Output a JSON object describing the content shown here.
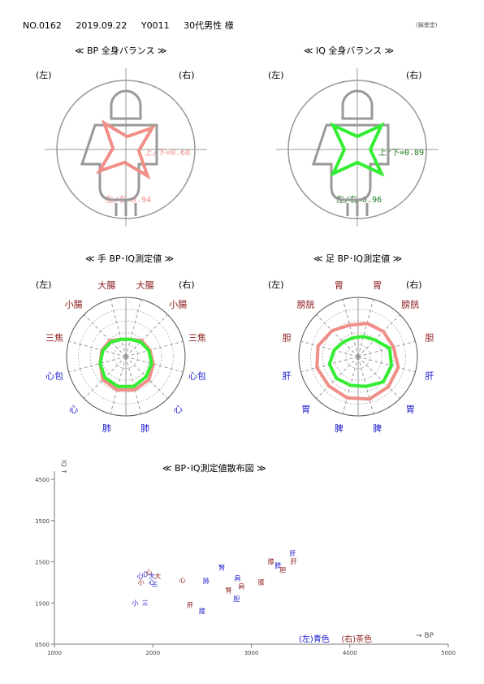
{
  "header": {
    "no": "NO.0162",
    "date": "2019.09.22",
    "id": "Y0011",
    "name": "30代男性 様"
  },
  "stamp": "(錦墨堂)",
  "colors": {
    "blue": "#1a1acc",
    "brown": "#8b1a1a",
    "pink": "#f08e88",
    "green": "#33ee33",
    "darkgreen": "#1a7a1a",
    "grid": "#999999"
  },
  "balance": [
    {
      "title": "≪ BP 全身バランス ≫",
      "left": "(左)",
      "right": "(右)",
      "ud": "上/下=0.68",
      "lr": "左/右=0.94",
      "color": "#f08e88",
      "textcolor": "#f08e88"
    },
    {
      "title": "≪ IQ 全身バランス ≫",
      "left": "(左)",
      "right": "(右)",
      "ud": "上/下=0.89",
      "lr": "左/右=0.96",
      "color": "#33ee33",
      "textcolor": "#1a7a1a"
    }
  ],
  "hand": {
    "title": "≪ 手 BP･IQ測定値 ≫",
    "left": "(左)",
    "right": "(右)",
    "labels": [
      "肺",
      "心",
      "心包",
      "三焦",
      "小腸",
      "大腸",
      "大腸",
      "小腸",
      "三焦",
      "心包",
      "心",
      "肺"
    ],
    "label_colors": [
      "blue",
      "blue",
      "blue",
      "brown",
      "brown",
      "brown",
      "brown",
      "brown",
      "brown",
      "blue",
      "blue",
      "blue"
    ],
    "bp": [
      0.58,
      0.55,
      0.45,
      0.42,
      0.38,
      0.3,
      0.3,
      0.38,
      0.42,
      0.48,
      0.55,
      0.58
    ],
    "iq": [
      0.52,
      0.5,
      0.45,
      0.4,
      0.35,
      0.3,
      0.3,
      0.35,
      0.4,
      0.45,
      0.48,
      0.52
    ]
  },
  "foot": {
    "title": "≪ 足 BP･IQ測定値 ≫",
    "left": "(左)",
    "right": "(右)",
    "labels": [
      "脾",
      "胃",
      "肝",
      "胆",
      "膀胱",
      "胃",
      "胃",
      "膀胱",
      "胆",
      "肝",
      "胃",
      "脾"
    ],
    "label_colors": [
      "blue",
      "blue",
      "blue",
      "brown",
      "brown",
      "brown",
      "brown",
      "brown",
      "brown",
      "blue",
      "blue",
      "blue"
    ],
    "bp": [
      0.72,
      0.7,
      0.72,
      0.7,
      0.62,
      0.55,
      0.58,
      0.6,
      0.62,
      0.7,
      0.72,
      0.74
    ],
    "iq": [
      0.5,
      0.52,
      0.5,
      0.42,
      0.35,
      0.33,
      0.35,
      0.4,
      0.55,
      0.58,
      0.6,
      0.52
    ]
  },
  "chart_data": {
    "type": "scatter",
    "title": "≪ BP･IQ測定値散布図 ≫",
    "xlabel": "→ BP",
    "ylabel": "IQ ↑",
    "xlim": [
      1000,
      5000
    ],
    "ylim": [
      500,
      4700
    ],
    "xticks": [
      1000,
      2000,
      3000,
      4000,
      5000
    ],
    "yticks": [
      500,
      1500,
      2500,
      3500,
      4500
    ],
    "legend": "(左)青色 (右)茶色",
    "legend_left": "(左)青色",
    "legend_right": "(右)茶色",
    "points": [
      {
        "x": 1920,
        "y": 2150,
        "label": "心",
        "c": "blue"
      },
      {
        "x": 1960,
        "y": 2200,
        "label": "心",
        "c": "brown"
      },
      {
        "x": 1990,
        "y": 2100,
        "label": "大",
        "c": "blue"
      },
      {
        "x": 2050,
        "y": 2100,
        "label": "大",
        "c": "brown"
      },
      {
        "x": 1870,
        "y": 2100,
        "label": "心",
        "c": "blue"
      },
      {
        "x": 1880,
        "y": 1950,
        "label": "小",
        "c": "brown"
      },
      {
        "x": 1990,
        "y": 1950,
        "label": "心",
        "c": "blue"
      },
      {
        "x": 2020,
        "y": 1900,
        "label": "三",
        "c": "blue"
      },
      {
        "x": 2300,
        "y": 2000,
        "label": "心",
        "c": "brown"
      },
      {
        "x": 2540,
        "y": 1980,
        "label": "肺",
        "c": "blue"
      },
      {
        "x": 2700,
        "y": 2300,
        "label": "腎",
        "c": "blue"
      },
      {
        "x": 2860,
        "y": 2050,
        "label": "肩",
        "c": "blue"
      },
      {
        "x": 2900,
        "y": 1850,
        "label": "肩",
        "c": "brown"
      },
      {
        "x": 2770,
        "y": 1750,
        "label": "腎",
        "c": "brown"
      },
      {
        "x": 2850,
        "y": 1550,
        "label": "胆",
        "c": "blue"
      },
      {
        "x": 1820,
        "y": 1450,
        "label": "小",
        "c": "blue"
      },
      {
        "x": 1920,
        "y": 1450,
        "label": "三",
        "c": "blue"
      },
      {
        "x": 2380,
        "y": 1400,
        "label": "肝",
        "c": "brown"
      },
      {
        "x": 2500,
        "y": 1250,
        "label": "膝",
        "c": "blue"
      },
      {
        "x": 3100,
        "y": 1950,
        "label": "膝",
        "c": "brown"
      },
      {
        "x": 3200,
        "y": 2450,
        "label": "膝",
        "c": "brown"
      },
      {
        "x": 3270,
        "y": 2350,
        "label": "膵",
        "c": "blue"
      },
      {
        "x": 3320,
        "y": 2250,
        "label": "胆",
        "c": "brown"
      },
      {
        "x": 3420,
        "y": 2650,
        "label": "肝",
        "c": "blue"
      },
      {
        "x": 3430,
        "y": 2450,
        "label": "肝",
        "c": "brown"
      }
    ]
  }
}
